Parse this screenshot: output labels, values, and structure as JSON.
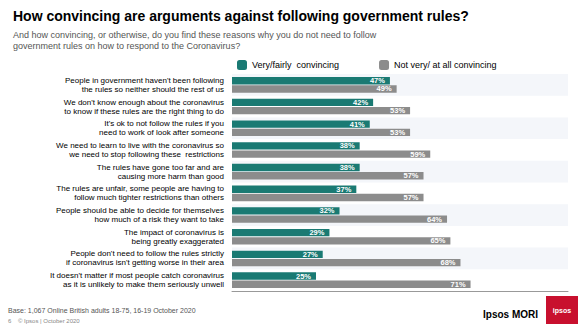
{
  "chart_data": {
    "type": "bar",
    "orientation": "horizontal",
    "title": "How convincing are arguments against following government rules?",
    "subtitle": "And how convincing, or otherwise, do you find these reasons why you do not need to follow\ngovernment rules on how to respond to the Coronavirus?",
    "categories": [
      "People in government haven't been following\nthe rules so neither should the rest of us",
      "We don't know enough about the coronavirus\nto know if these rules are the right thing to do",
      "It's ok to not follow the rules if you\nneed to work of look after someone",
      "We need to learn to live with the coronavirus so\nwe need to stop following these  restrictions",
      "The rules have gone too far and are\ncausing more harm than good",
      "The rules are unfair, some people are having to\nfollow much tighter restrictions than others",
      "People should be able to decide for themselves\nhow much of a risk they want to take",
      "The impact of coronavirus is\nbeing greatly exaggerated",
      "People don't need to follow the rules strictly\nif coronavirus isn't getting worse in their area",
      "It doesn't matter if most people catch coronavirus\nas it is unlikely to make them seriously unwell"
    ],
    "series": [
      {
        "name": "Very/fairly  convincing",
        "color": "#1a7a73",
        "values": [
          47,
          42,
          41,
          38,
          38,
          37,
          32,
          29,
          27,
          25
        ],
        "value_labels": [
          "47%",
          "42%",
          "41%",
          "38%",
          "38%",
          "37%",
          "32%",
          "29%",
          "27%",
          "25%"
        ]
      },
      {
        "name": "Not very/ at all convincing",
        "color": "#8c8c8c",
        "values": [
          49,
          53,
          53,
          59,
          57,
          57,
          64,
          65,
          68,
          71
        ],
        "value_labels": [
          "49%",
          "53%",
          "53%",
          "59%",
          "57%",
          "57%",
          "64%",
          "65%",
          "68%",
          "71%"
        ]
      }
    ],
    "xlim": [
      0,
      100
    ],
    "tick_labels": false,
    "data_labels": true,
    "grid": false,
    "legend": "top left",
    "annotations": [
      "Base: 1,067 Online British adults 18-75, 16-19 October 2020",
      "6    © Ipsos | October 2020",
      "Ipsos MORI",
      "ipsos"
    ]
  }
}
